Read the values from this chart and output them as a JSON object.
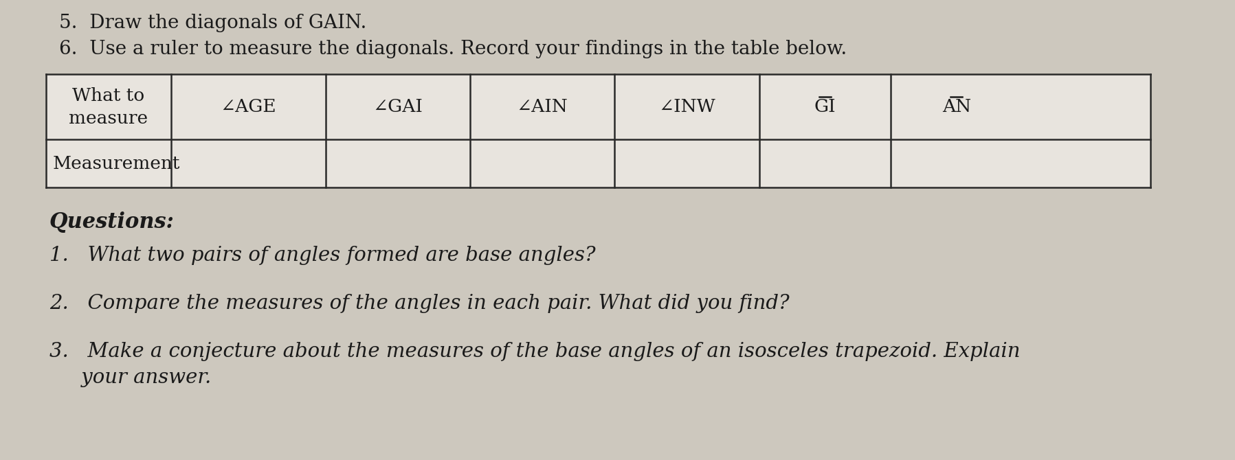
{
  "background_color": "#cdc8be",
  "title_line1": "5.  Draw the diagonals of GAIN.",
  "title_line2": "6.  Use a ruler to measure the diagonals. Record your findings in the table below.",
  "table_headers": [
    "What to\nmeasure",
    "∠AGE",
    "∠GAI",
    "∠AIN",
    "∠INW",
    "GI",
    "AN"
  ],
  "table_row_label": "Measurement",
  "questions_header": "Questions:",
  "questions": [
    "1.   What two pairs of angles formed are base angles?",
    "2.   Compare the measures of the angles in each pair. What did you find?",
    "3.   Make a conjecture about the measures of the base angles of an isosceles trapezoid. Explain",
    "     your answer."
  ],
  "overline_cols": [
    5,
    6
  ],
  "text_color": "#1a1a1a",
  "table_line_color": "#2a2a2a",
  "table_bg": "#d8d3cb",
  "font_size_title": 20,
  "font_size_table": 19,
  "font_size_questions_header": 22,
  "font_size_questions": 21
}
